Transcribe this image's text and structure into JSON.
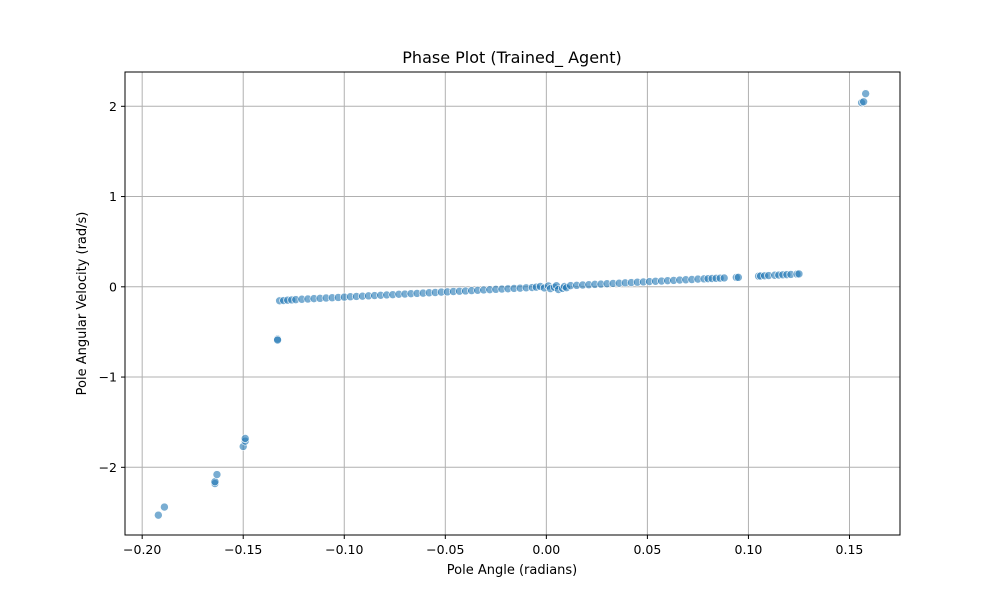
{
  "chart_data": {
    "type": "scatter",
    "title": "Phase Plot (Trained_ Agent)",
    "xlabel": "Pole Angle (radians)",
    "ylabel": "Pole Angular Velocity (rad/s)",
    "xlim": [
      -0.2085,
      0.175
    ],
    "ylim": [
      -2.75,
      2.38
    ],
    "xticks": [
      -0.2,
      -0.15,
      -0.1,
      -0.05,
      0.0,
      0.05,
      0.1,
      0.15
    ],
    "xtick_labels": [
      "−0.20",
      "−0.15",
      "−0.10",
      "−0.05",
      "0.00",
      "0.05",
      "0.10",
      "0.15"
    ],
    "yticks": [
      -2,
      -1,
      0,
      1,
      2
    ],
    "ytick_labels": [
      "−2",
      "−1",
      "0",
      "1",
      "2"
    ],
    "grid": true,
    "marker_color": "#1f77b4",
    "series": [
      {
        "points": [
          [
            -0.192,
            -2.53
          ],
          [
            -0.189,
            -2.44
          ],
          [
            -0.164,
            -2.18
          ],
          [
            -0.164,
            -2.16
          ],
          [
            -0.163,
            -2.08
          ],
          [
            -0.15,
            -1.77
          ],
          [
            -0.149,
            -1.71
          ],
          [
            -0.149,
            -1.68
          ],
          [
            -0.133,
            -0.58
          ],
          [
            -0.133,
            -0.59
          ],
          [
            -0.132,
            -0.155
          ],
          [
            -0.13,
            -0.152
          ],
          [
            -0.128,
            -0.148
          ],
          [
            -0.126,
            -0.145
          ],
          [
            -0.124,
            -0.142
          ],
          [
            -0.121,
            -0.138
          ],
          [
            -0.118,
            -0.135
          ],
          [
            -0.115,
            -0.131
          ],
          [
            -0.112,
            -0.128
          ],
          [
            -0.109,
            -0.124
          ],
          [
            -0.106,
            -0.121
          ],
          [
            -0.103,
            -0.118
          ],
          [
            -0.1,
            -0.114
          ],
          [
            -0.097,
            -0.11
          ],
          [
            -0.094,
            -0.107
          ],
          [
            -0.091,
            -0.104
          ],
          [
            -0.088,
            -0.1
          ],
          [
            -0.085,
            -0.097
          ],
          [
            -0.082,
            -0.094
          ],
          [
            -0.079,
            -0.09
          ],
          [
            -0.076,
            -0.087
          ],
          [
            -0.073,
            -0.083
          ],
          [
            -0.07,
            -0.08
          ],
          [
            -0.067,
            -0.076
          ],
          [
            -0.064,
            -0.073
          ],
          [
            -0.061,
            -0.07
          ],
          [
            -0.058,
            -0.066
          ],
          [
            -0.055,
            -0.063
          ],
          [
            -0.052,
            -0.059
          ],
          [
            -0.049,
            -0.056
          ],
          [
            -0.046,
            -0.052
          ],
          [
            -0.043,
            -0.049
          ],
          [
            -0.04,
            -0.046
          ],
          [
            -0.037,
            -0.042
          ],
          [
            -0.034,
            -0.039
          ],
          [
            -0.031,
            -0.035
          ],
          [
            -0.028,
            -0.032
          ],
          [
            -0.025,
            -0.028
          ],
          [
            -0.022,
            -0.025
          ],
          [
            -0.019,
            -0.022
          ],
          [
            -0.016,
            -0.018
          ],
          [
            -0.013,
            -0.015
          ],
          [
            -0.01,
            -0.011
          ],
          [
            -0.007,
            -0.008
          ],
          [
            -0.005,
            -0.004
          ],
          [
            -0.003,
            0.004
          ],
          [
            -0.001,
            -0.012
          ],
          [
            0.001,
            0.01
          ],
          [
            0.002,
            -0.02
          ],
          [
            0.004,
            -0.006
          ],
          [
            0.005,
            0.012
          ],
          [
            0.006,
            -0.03
          ],
          [
            0.008,
            -0.018
          ],
          [
            0.009,
            0.004
          ],
          [
            0.01,
            -0.01
          ],
          [
            0.012,
            0.013
          ],
          [
            0.015,
            0.016
          ],
          [
            0.018,
            0.02
          ],
          [
            0.021,
            0.023
          ],
          [
            0.024,
            0.027
          ],
          [
            0.027,
            0.03
          ],
          [
            0.03,
            0.034
          ],
          [
            0.033,
            0.037
          ],
          [
            0.036,
            0.04
          ],
          [
            0.039,
            0.044
          ],
          [
            0.042,
            0.047
          ],
          [
            0.045,
            0.051
          ],
          [
            0.048,
            0.054
          ],
          [
            0.051,
            0.058
          ],
          [
            0.054,
            0.061
          ],
          [
            0.057,
            0.064
          ],
          [
            0.06,
            0.068
          ],
          [
            0.063,
            0.071
          ],
          [
            0.066,
            0.075
          ],
          [
            0.069,
            0.078
          ],
          [
            0.072,
            0.081
          ],
          [
            0.075,
            0.085
          ],
          [
            0.078,
            0.088
          ],
          [
            0.08,
            0.09
          ],
          [
            0.082,
            0.092
          ],
          [
            0.084,
            0.094
          ],
          [
            0.086,
            0.096
          ],
          [
            0.088,
            0.098
          ],
          [
            0.094,
            0.104
          ],
          [
            0.095,
            0.105
          ],
          [
            0.105,
            0.118
          ],
          [
            0.106,
            0.12
          ],
          [
            0.108,
            0.122
          ],
          [
            0.11,
            0.125
          ],
          [
            0.113,
            0.128
          ],
          [
            0.115,
            0.13
          ],
          [
            0.117,
            0.133
          ],
          [
            0.119,
            0.135
          ],
          [
            0.121,
            0.137
          ],
          [
            0.124,
            0.141
          ],
          [
            0.125,
            0.143
          ],
          [
            0.156,
            2.04
          ],
          [
            0.157,
            2.05
          ],
          [
            0.158,
            2.14
          ]
        ]
      }
    ]
  }
}
